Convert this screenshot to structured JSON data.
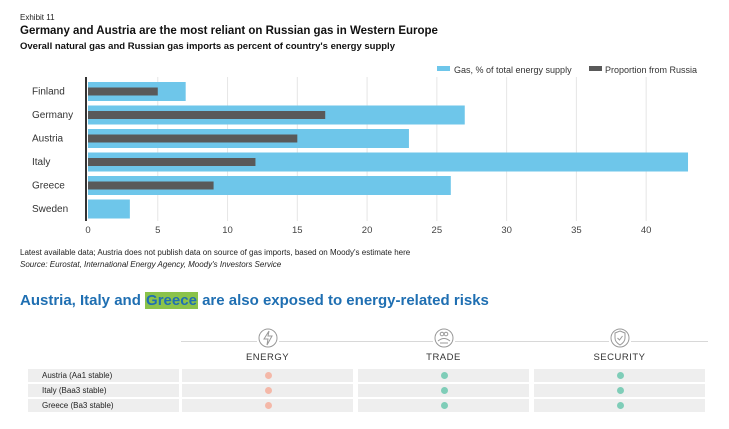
{
  "header": {
    "exhibit": "Exhibit 11",
    "title": "Germany and Austria are the most reliant on Russian gas in Western Europe",
    "subtitle": "Overall natural gas and Russian gas imports as percent of country's energy supply"
  },
  "chart_data": {
    "type": "bar",
    "orientation": "horizontal",
    "categories": [
      "Finland",
      "Germany",
      "Austria",
      "Italy",
      "Greece",
      "Sweden"
    ],
    "series": [
      {
        "name": "Gas, % of total energy supply",
        "color": "#6ec6ea",
        "values": [
          7,
          27,
          23,
          43,
          26,
          3
        ]
      },
      {
        "name": "Proportion from Russia",
        "color": "#595959",
        "values": [
          5,
          17,
          15,
          12,
          9,
          0
        ]
      }
    ],
    "x_ticks": [
      "0",
      "5",
      "10",
      "15",
      "20",
      "25",
      "30",
      "35",
      "40"
    ],
    "xlim": [
      0,
      43.5
    ],
    "grid": "vertical",
    "legend_position": "top-right"
  },
  "footer": {
    "note": "Latest available data; Austria does not publish data on source of gas imports, based on Moody's estimate here",
    "source": "Source: Eurostat, International Energy Agency, Moody's Investors Service"
  },
  "risks": {
    "title_before": "Austria, Italy and ",
    "title_highlight": "Greece",
    "title_after": " are also exposed to energy-related risks",
    "columns": [
      {
        "label": "ENERGY",
        "icon": "lightning-bolt-icon"
      },
      {
        "label": "TRADE",
        "icon": "handshake-icon"
      },
      {
        "label": "SECURITY",
        "icon": "shield-check-icon"
      }
    ],
    "rows": [
      {
        "label": "Austria (Aa1 stable)",
        "statuses": [
          "elevated",
          "low",
          "low"
        ]
      },
      {
        "label": "Italy (Baa3 stable)",
        "statuses": [
          "elevated",
          "low",
          "low"
        ]
      },
      {
        "label": "Greece (Ba3 stable)",
        "statuses": [
          "elevated",
          "low",
          "low"
        ]
      }
    ],
    "status_colors": {
      "elevated": "#f4b8a8",
      "low": "#7fcdb8"
    }
  }
}
